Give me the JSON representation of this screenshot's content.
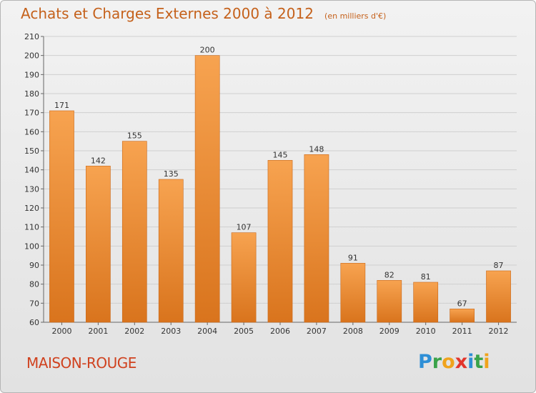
{
  "header": {
    "title": "Achats et Charges Externes 2000 à 2012",
    "subtitle": "(en milliers d'€)"
  },
  "footer": {
    "commune": "MAISON-ROUGE",
    "logo_letters": [
      "P",
      "r",
      "o",
      "x",
      "i",
      "t",
      "i"
    ]
  },
  "colors": {
    "bar_light": "#f7a350",
    "bar_dark": "#d9741d",
    "title": "#c5611b",
    "commune": "#d0421f"
  },
  "chart_data": {
    "type": "bar",
    "title": "Achats et Charges Externes 2000 à 2012",
    "xlabel": "",
    "ylabel": "",
    "categories": [
      "2000",
      "2001",
      "2002",
      "2003",
      "2004",
      "2005",
      "2006",
      "2007",
      "2008",
      "2009",
      "2010",
      "2011",
      "2012"
    ],
    "values": [
      171,
      142,
      155,
      135,
      200,
      107,
      145,
      148,
      91,
      82,
      81,
      67,
      87
    ],
    "ylim": [
      60,
      210
    ],
    "yticks": [
      60,
      70,
      80,
      90,
      100,
      110,
      120,
      130,
      140,
      150,
      160,
      170,
      180,
      190,
      200,
      210
    ],
    "grid": true,
    "legend": "none"
  }
}
